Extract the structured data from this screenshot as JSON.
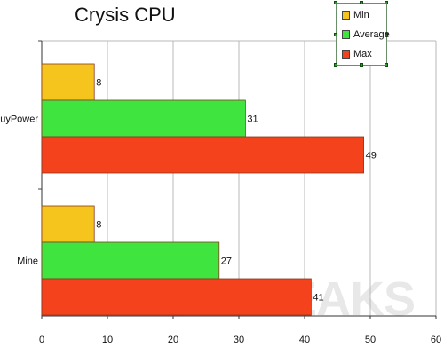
{
  "chart_data": {
    "type": "bar",
    "orientation": "horizontal",
    "title": "Crysis CPU",
    "categories": [
      "iBuyPower",
      "Mine"
    ],
    "series": [
      {
        "name": "Min",
        "color": "#f5c51d",
        "values": [
          8,
          8
        ]
      },
      {
        "name": "Average",
        "color": "#3fe43f",
        "values": [
          31,
          27
        ]
      },
      {
        "name": "Max",
        "color": "#f4421c",
        "values": [
          49,
          41
        ]
      }
    ],
    "xlim": [
      0,
      60
    ],
    "xticks": [
      0,
      10,
      20,
      30,
      40,
      50,
      60
    ],
    "grid": true,
    "legend_position": "top-right",
    "xlabel": "",
    "ylabel": ""
  },
  "watermark_text": "TESTFREAKS"
}
